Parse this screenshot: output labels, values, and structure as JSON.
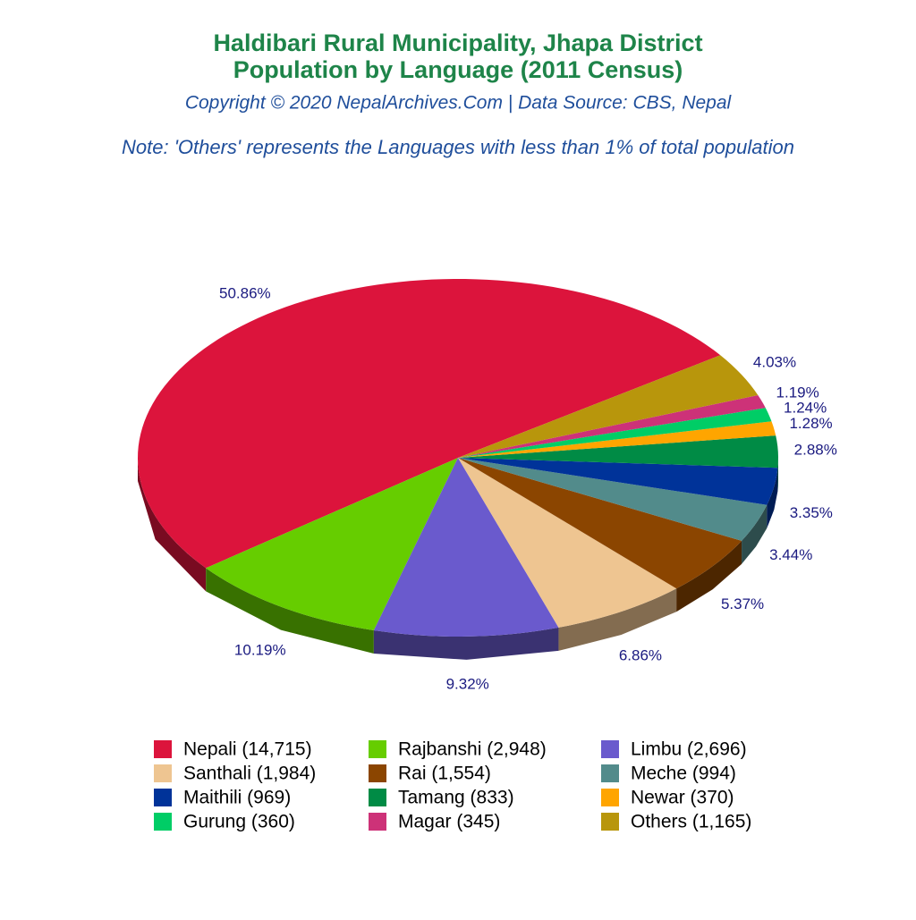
{
  "chart_data": {
    "type": "pie3d",
    "title": "Haldibari Rural Municipality, Jhapa District",
    "subtitle": "Population by Language (2011 Census)",
    "copyright": "Copyright © 2020 NepalArchives.Com | Data Source: CBS, Nepal",
    "note": "Note: 'Others' represents the Languages with less than 1% of total population",
    "categories": [
      "Nepali (14,715)",
      "Rajbanshi (2,948)",
      "Limbu (2,696)",
      "Santhali (1,984)",
      "Rai (1,554)",
      "Meche (994)",
      "Maithili (969)",
      "Tamang (833)",
      "Newar (370)",
      "Gurung (360)",
      "Magar (345)",
      "Others (1,165)"
    ],
    "values": [
      50.86,
      10.19,
      9.32,
      6.86,
      5.37,
      3.44,
      3.35,
      2.88,
      1.28,
      1.24,
      1.19,
      4.03
    ],
    "value_labels": [
      "50.86%",
      "10.19%",
      "9.32%",
      "6.86%",
      "5.37%",
      "3.44%",
      "3.35%",
      "2.88%",
      "1.28%",
      "1.24%",
      "1.19%",
      "4.03%"
    ],
    "colors": [
      "#dc143c",
      "#66cd00",
      "#6a5acd",
      "#eec591",
      "#8b4500",
      "#528b8b",
      "#003399",
      "#008b45",
      "#ffa500",
      "#00cd66",
      "#cd3278",
      "#b8960c"
    ]
  }
}
